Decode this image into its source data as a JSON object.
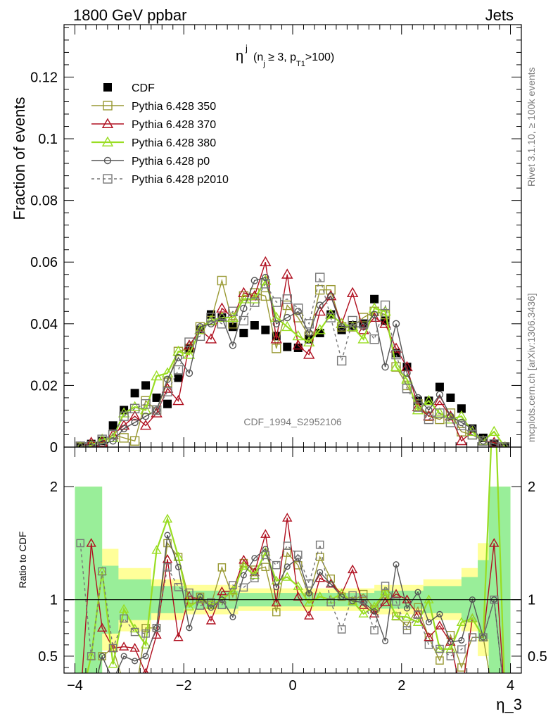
{
  "header": {
    "left": "1800 GeV ppbar",
    "right": "Jets",
    "side_top": "Rivet 3.1.10, ≥ 100k events",
    "side_bottom": "mcplots.cern.ch [arXiv:1306.3436]",
    "watermark": "CDF_1994_S2952106"
  },
  "chart_data": {
    "type": "line",
    "title": "η",
    "title_sup": "j",
    "title_sub": "(n_j ≥ 3, p_T1>100)",
    "title_parts": {
      "open": "(n",
      "j": "j",
      "ge": " ≥ 3, p",
      "T1": "T1",
      "close": ">100)"
    },
    "xlabel": "η_3",
    "ylabel": "Fraction of events",
    "ratio_ylabel": "Ratio to CDF",
    "xlim": [
      -4.2,
      4.2
    ],
    "ylim": [
      0,
      0.137
    ],
    "ratio_ylim": [
      0.35,
      2.35
    ],
    "x_ticks": [
      -4,
      -2,
      0,
      2,
      4
    ],
    "x_tick_labels": [
      "−4",
      "−2",
      "0",
      "2",
      "4"
    ],
    "y_ticks": [
      0,
      0.02,
      0.04,
      0.06,
      0.08,
      0.1,
      0.12
    ],
    "y_tick_labels": [
      "0",
      "0.02",
      "0.04",
      "0.06",
      "0.08",
      "0.1",
      "0.12"
    ],
    "ratio_ticks": [
      0.5,
      1,
      2
    ],
    "ratio_tick_labels": [
      "0.5",
      "1",
      "2"
    ],
    "legend_position": "top-left",
    "x": [
      -3.9,
      -3.7,
      -3.5,
      -3.3,
      -3.1,
      -2.9,
      -2.7,
      -2.5,
      -2.3,
      -2.1,
      -1.9,
      -1.7,
      -1.5,
      -1.3,
      -1.1,
      -0.9,
      -0.7,
      -0.5,
      -0.3,
      -0.1,
      0.1,
      0.3,
      0.5,
      0.7,
      0.9,
      1.1,
      1.3,
      1.5,
      1.7,
      1.9,
      2.1,
      2.3,
      2.5,
      2.7,
      2.9,
      3.1,
      3.3,
      3.5,
      3.7,
      3.9
    ],
    "band_inner": [
      [
        -4.0,
        1.0
      ],
      [
        -3.5,
        0.3
      ],
      [
        -3.2,
        0.18
      ],
      [
        -2.6,
        0.12
      ],
      [
        -2.0,
        0.08
      ],
      [
        -1.0,
        0.06
      ],
      [
        0.5,
        0.06
      ],
      [
        1.5,
        0.08
      ],
      [
        2.4,
        0.12
      ],
      [
        3.1,
        0.2
      ],
      [
        3.4,
        0.35
      ],
      [
        3.6,
        1.0
      ]
    ],
    "band_outer": [
      [
        -4.0,
        1.0
      ],
      [
        -3.5,
        0.45
      ],
      [
        -3.2,
        0.28
      ],
      [
        -2.6,
        0.18
      ],
      [
        -2.0,
        0.13
      ],
      [
        -1.0,
        0.1
      ],
      [
        0.5,
        0.1
      ],
      [
        1.5,
        0.13
      ],
      [
        2.4,
        0.18
      ],
      [
        3.1,
        0.28
      ],
      [
        3.4,
        0.5
      ],
      [
        3.6,
        1.0
      ]
    ],
    "series": [
      {
        "name": "CDF",
        "marker": "filled-square",
        "color": "#000000",
        "values": [
          0.0002,
          0.001,
          0.002,
          0.007,
          0.012,
          0.0175,
          0.02,
          0.016,
          0.014,
          0.0225,
          0.032,
          0.038,
          0.043,
          0.042,
          0.039,
          0.037,
          0.0395,
          0.038,
          0.036,
          0.0325,
          0.0322,
          0.035,
          0.037,
          0.043,
          0.038,
          0.0395,
          0.04,
          0.048,
          0.041,
          0.0305,
          0.026,
          0.015,
          0.015,
          0.0195,
          0.016,
          0.0125,
          0.006,
          0.003,
          0.001,
          0.0002
        ]
      },
      {
        "name": "Pythia 6.428 350",
        "marker": "open-square",
        "color": "#999933",
        "dash": "",
        "values": [
          0.0,
          0.0,
          0.001,
          0.004,
          0.003,
          0.002,
          0.015,
          0.012,
          0.021,
          0.031,
          0.032,
          0.039,
          0.041,
          0.054,
          0.04,
          0.049,
          0.05,
          0.049,
          0.032,
          0.046,
          0.042,
          0.036,
          0.051,
          0.051,
          0.039,
          0.039,
          0.042,
          0.044,
          0.043,
          0.026,
          0.02,
          0.014,
          0.01,
          0.009,
          0.011,
          0.005,
          0.004,
          0.002,
          0.0,
          0.0
        ]
      },
      {
        "name": "Pythia 6.428 370",
        "marker": "open-triangle",
        "color": "#b01020",
        "dash": "",
        "values": [
          0.0,
          0.0015,
          0.0015,
          0.004,
          0.007,
          0.01,
          0.007,
          0.011,
          0.019,
          0.015,
          0.033,
          0.038,
          0.035,
          0.045,
          0.042,
          0.05,
          0.049,
          0.06,
          0.035,
          0.056,
          0.033,
          0.03,
          0.044,
          0.049,
          0.04,
          0.05,
          0.038,
          0.042,
          0.04,
          0.032,
          0.026,
          0.013,
          0.01,
          0.015,
          0.01,
          0.002,
          0.005,
          0.002,
          0.0015,
          0.0
        ]
      },
      {
        "name": "Pythia 6.428 380",
        "marker": "open-triangle",
        "color": "#99dd22",
        "dash": "",
        "values": [
          0.0,
          0.0005,
          0.0025,
          0.003,
          0.011,
          0.013,
          0.012,
          0.023,
          0.024,
          0.031,
          0.03,
          0.038,
          0.041,
          0.042,
          0.042,
          0.048,
          0.048,
          0.054,
          0.042,
          0.039,
          0.036,
          0.034,
          0.038,
          0.043,
          0.04,
          0.039,
          0.035,
          0.045,
          0.044,
          0.026,
          0.022,
          0.012,
          0.015,
          0.011,
          0.009,
          0.01,
          0.005,
          0.002,
          0.005,
          0.0
        ]
      },
      {
        "name": "Pythia 6.428 p0",
        "marker": "open-circle",
        "color": "#555555",
        "dash": "",
        "values": [
          0.0,
          0.0,
          0.001,
          0.002,
          0.006,
          0.008,
          0.01,
          0.012,
          0.022,
          0.029,
          0.024,
          0.039,
          0.04,
          0.042,
          0.033,
          0.045,
          0.054,
          0.055,
          0.04,
          0.042,
          0.044,
          0.037,
          0.046,
          0.049,
          0.039,
          0.039,
          0.039,
          0.043,
          0.026,
          0.04,
          0.024,
          0.016,
          0.012,
          0.017,
          0.01,
          0.008,
          0.006,
          0.002,
          0.001,
          0.0
        ]
      },
      {
        "name": "Pythia 6.428 p2010",
        "marker": "open-square",
        "color": "#777777",
        "dash": "4,4",
        "values": [
          0.0003,
          0.0005,
          0.0025,
          0.004,
          0.01,
          0.0125,
          0.014,
          0.012,
          0.018,
          0.025,
          0.034,
          0.036,
          0.042,
          0.04,
          0.044,
          0.041,
          0.047,
          0.053,
          0.047,
          0.048,
          0.045,
          0.04,
          0.055,
          0.042,
          0.028,
          0.041,
          0.04,
          0.035,
          0.046,
          0.03,
          0.019,
          0.013,
          0.009,
          0.011,
          0.008,
          0.007,
          0.004,
          0.002,
          0.001,
          0.0
        ]
      }
    ]
  }
}
